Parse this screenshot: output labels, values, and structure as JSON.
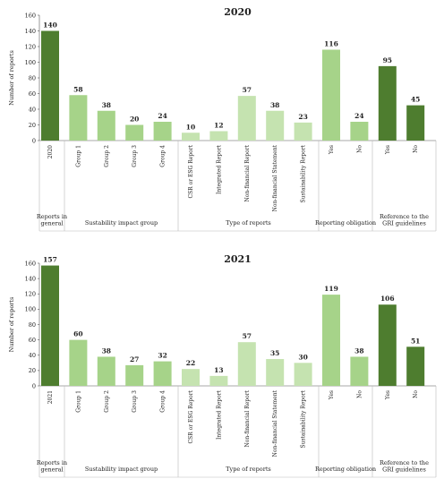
{
  "colors": {
    "dark": "#4e7d2f",
    "medium": "#a6d389",
    "light": "#c5e3b0",
    "frame": "#bbbbbb",
    "axis": "#555555"
  },
  "chart_data": [
    {
      "type": "bar",
      "title": "2020",
      "ylabel": "Number of reports",
      "ylim": [
        0,
        160
      ],
      "yticks": [
        0,
        20,
        40,
        60,
        80,
        100,
        120,
        140,
        160
      ],
      "grid": false,
      "groups": [
        {
          "label": "Reports in general",
          "items": [
            {
              "category": "2020",
              "value": 140,
              "shade": "dark"
            }
          ]
        },
        {
          "label": "Sustability impact group",
          "items": [
            {
              "category": "Group 1",
              "value": 58,
              "shade": "medium"
            },
            {
              "category": "Group 2",
              "value": 38,
              "shade": "medium"
            },
            {
              "category": "Group 3",
              "value": 20,
              "shade": "medium"
            },
            {
              "category": "Group 4",
              "value": 24,
              "shade": "medium"
            }
          ]
        },
        {
          "label": "Type of reports",
          "items": [
            {
              "category": "CSR or ESG Report",
              "value": 10,
              "shade": "light"
            },
            {
              "category": "Integrated Report",
              "value": 12,
              "shade": "light"
            },
            {
              "category": "Non-financial Report",
              "value": 57,
              "shade": "light"
            },
            {
              "category": "Non-financial Statement",
              "value": 38,
              "shade": "light"
            },
            {
              "category": "Sustainability Report",
              "value": 23,
              "shade": "light"
            }
          ]
        },
        {
          "label": "Reporting obligation",
          "items": [
            {
              "category": "Yes",
              "value": 116,
              "shade": "medium"
            },
            {
              "category": "No",
              "value": 24,
              "shade": "medium"
            }
          ]
        },
        {
          "label": "Reference to the GRI guidelines",
          "items": [
            {
              "category": "Yes",
              "value": 95,
              "shade": "dark"
            },
            {
              "category": "No",
              "value": 45,
              "shade": "dark"
            }
          ]
        }
      ]
    },
    {
      "type": "bar",
      "title": "2021",
      "ylabel": "Number of reports",
      "ylim": [
        0,
        160
      ],
      "yticks": [
        0,
        20,
        40,
        60,
        80,
        100,
        120,
        140,
        160
      ],
      "grid": false,
      "groups": [
        {
          "label": "Reports in general",
          "items": [
            {
              "category": "2021",
              "value": 157,
              "shade": "dark"
            }
          ]
        },
        {
          "label": "Sustability impact group",
          "items": [
            {
              "category": "Group 1",
              "value": 60,
              "shade": "medium"
            },
            {
              "category": "Group 2",
              "value": 38,
              "shade": "medium"
            },
            {
              "category": "Group 3",
              "value": 27,
              "shade": "medium"
            },
            {
              "category": "Group 4",
              "value": 32,
              "shade": "medium"
            }
          ]
        },
        {
          "label": "Type of reports",
          "items": [
            {
              "category": "CSR or ESG Report",
              "value": 22,
              "shade": "light"
            },
            {
              "category": "Integrated Report",
              "value": 13,
              "shade": "light"
            },
            {
              "category": "Non-financial Report",
              "value": 57,
              "shade": "light"
            },
            {
              "category": "Non-financial Statement",
              "value": 35,
              "shade": "light"
            },
            {
              "category": "Sustainability Report",
              "value": 30,
              "shade": "light"
            }
          ]
        },
        {
          "label": "Reporting obligation",
          "items": [
            {
              "category": "Yes",
              "value": 119,
              "shade": "medium"
            },
            {
              "category": "No",
              "value": 38,
              "shade": "medium"
            }
          ]
        },
        {
          "label": "Reference to the GRI guidelines",
          "items": [
            {
              "category": "Yes",
              "value": 106,
              "shade": "dark"
            },
            {
              "category": "No",
              "value": 51,
              "shade": "dark"
            }
          ]
        }
      ]
    }
  ]
}
